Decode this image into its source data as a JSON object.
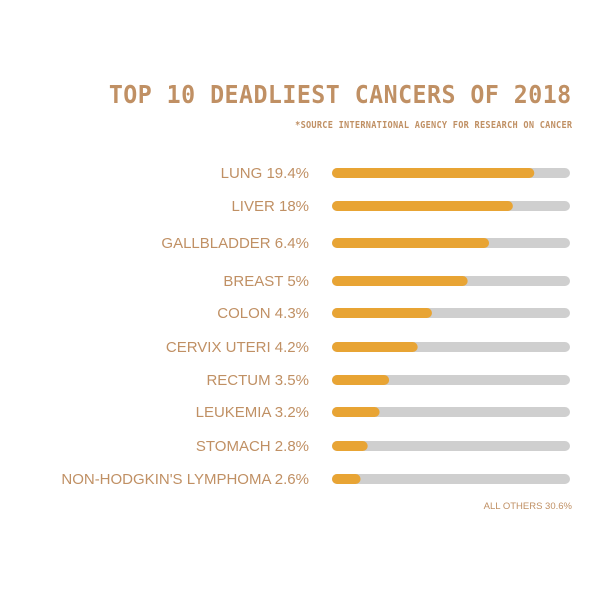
{
  "colors": {
    "text": "#c09064",
    "bar_fill": "#e8a434",
    "bar_track": "#cfcfcf",
    "background": "#ffffff"
  },
  "chart_data": {
    "type": "bar",
    "orientation": "horizontal",
    "title": "TOP 10 DEADLIEST CANCERS OF 2018",
    "subtitle": "*SOURCE INTERNATIONAL AGENCY FOR RESEARCH ON CANCER",
    "labels": [
      "LUNG 19.4%",
      "LIVER 18%",
      "GALLBLADDER 6.4%",
      "BREAST 5%",
      "COLON 4.3%",
      "CERVIX UTERI 4.2%",
      "RECTUM 3.5%",
      "LEUKEMIA 3.2%",
      "STOMACH 2.8%",
      "NON-HODGKIN'S LYMPHOMA 2.6%"
    ],
    "values": [
      85,
      76,
      66,
      57,
      42,
      36,
      24,
      20,
      15,
      12
    ],
    "value_unit": "percent of track filled",
    "footnote": "ALL OTHERS 30.6%",
    "grid": false,
    "legend": "none"
  }
}
